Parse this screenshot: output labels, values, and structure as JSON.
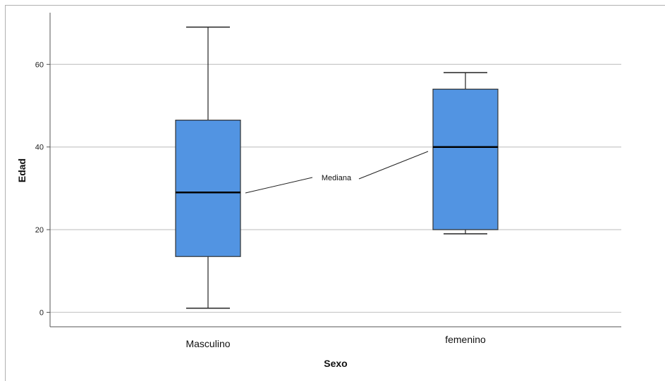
{
  "chart_data": {
    "type": "boxplot",
    "xlabel": "Sexo",
    "ylabel": "Edad",
    "ylim": [
      -3.5,
      72.5
    ],
    "yticks": [
      0,
      20,
      40,
      60
    ],
    "grid": true,
    "box_color": "#5294e2",
    "box_edge_color": "#333333",
    "categories": [
      "Masculino",
      "femenino"
    ],
    "boxes": [
      {
        "category": "Masculino",
        "min": 1,
        "q1": 13.5,
        "median": 29,
        "q3": 46.5,
        "max": 69
      },
      {
        "category": "femenino",
        "min": 19,
        "q1": 20,
        "median": 40,
        "q3": 54,
        "max": 58
      }
    ],
    "annotation": {
      "text": "Mediana",
      "targets": [
        "Masculino",
        "femenino"
      ]
    }
  }
}
